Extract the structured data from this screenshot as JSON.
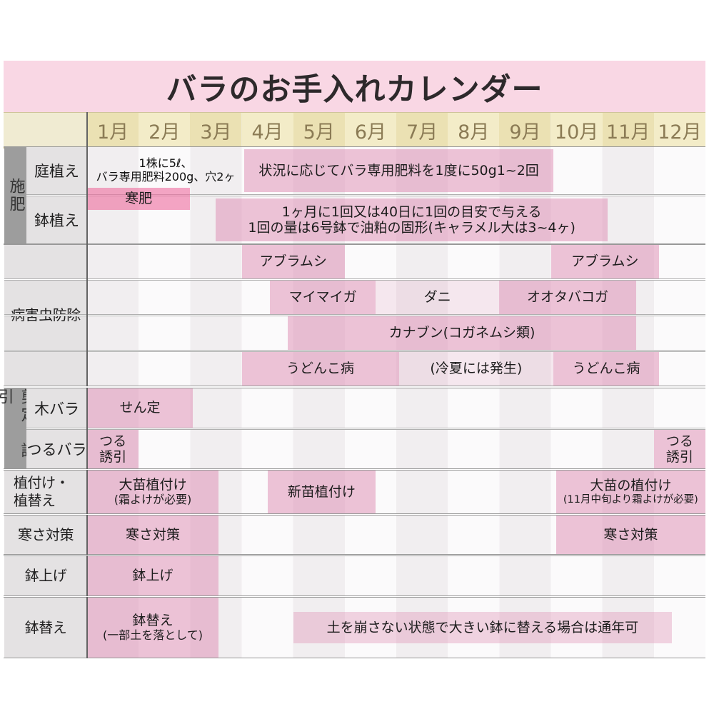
{
  "title": "バラのお手入れカレンダー",
  "months": [
    "1月",
    "2月",
    "3月",
    "4月",
    "5月",
    "6月",
    "7月",
    "8月",
    "9月",
    "10月",
    "11月",
    "12月"
  ],
  "colors": {
    "title_bg": "#f9d7e4",
    "title_text": "#2d292b",
    "header_beige_dark": "#ebe1b3",
    "header_beige_light": "#f3ecc8",
    "header_text": "#8b7b55",
    "header_rule": "#b1a266",
    "group_label_bg": "#9d9d9d",
    "row_label_bg": "#e4e2e3",
    "bar_pink_strong": "#eec6da",
    "bar_pink_light": "#f8e8ef",
    "bar_pink_kanpi": "#f4b1cb",
    "grid_line": "#989898"
  },
  "chart_data": {
    "type": "table",
    "subtype": "gantt-care-calendar",
    "x_unit": "month",
    "x_range": [
      1,
      13
    ],
    "x_ticks": [
      "1月",
      "2月",
      "3月",
      "4月",
      "5月",
      "6月",
      "7月",
      "8月",
      "9月",
      "10月",
      "11月",
      "12月"
    ],
    "sections": [
      {
        "id": "fertilizing",
        "group_label": "施肥",
        "vertical_group": true,
        "rows": [
          {
            "label": "庭植え",
            "bars": [
              {
                "lines": [
                  "1株に5ℓ、",
                  "バラ専用肥料200g、穴2ヶ"
                ],
                "start": 1.0,
                "end": 4.05,
                "emphasis": "none",
                "variant": "note"
              },
              {
                "lines": [
                  "状況に応じてバラ専用肥料を1度に50g1~2回"
                ],
                "start": 4.05,
                "end": 10.05,
                "emphasis": "strong",
                "variant": "fert"
              }
            ]
          },
          {
            "label": "鉢植え",
            "bars": [
              {
                "lines": [
                  "1ヶ月に1回又は40日に1回の目安で与える",
                  "1回の量は6号鉢で油粕の固形(キャラメル大は3~4ヶ)"
                ],
                "start": 3.5,
                "end": 11.1,
                "emphasis": "strong",
                "variant": "fertpot"
              }
            ]
          }
        ],
        "overlay_bars": [
          {
            "lines": [
              "寒肥"
            ],
            "start": 1.0,
            "end": 3.0,
            "emphasis": "kanpi",
            "note": "straddles 庭植え and 鉢植え rows"
          }
        ]
      },
      {
        "id": "pest-control",
        "group_label": "病害虫防除",
        "vertical_group": false,
        "rows": [
          {
            "label": "",
            "bars": [
              {
                "lines": [
                  "アブラムシ"
                ],
                "start": 4.0,
                "end": 6.0,
                "emphasis": "strong"
              },
              {
                "lines": [
                  "アブラムシ"
                ],
                "start": 10.0,
                "end": 12.1,
                "emphasis": "strong"
              }
            ]
          },
          {
            "label": "",
            "bars": [
              {
                "lines": [
                  "マイマイガ"
                ],
                "start": 4.55,
                "end": 6.6,
                "emphasis": "strong"
              },
              {
                "lines": [
                  "ダニ"
                ],
                "start": 6.6,
                "end": 9.0,
                "emphasis": "light"
              },
              {
                "lines": [
                  "オオタバコガ"
                ],
                "start": 9.0,
                "end": 11.65,
                "emphasis": "strong"
              }
            ]
          },
          {
            "label": "",
            "bars": [
              {
                "lines": [
                  "カナブン(コガネムシ類)"
                ],
                "start": 4.9,
                "end": 11.65,
                "emphasis": "strong"
              }
            ]
          },
          {
            "label": "",
            "bars": [
              {
                "lines": [
                  "うどんこ病"
                ],
                "start": 4.0,
                "end": 7.05,
                "emphasis": "strong"
              },
              {
                "lines": [
                  "(冷夏には発生)"
                ],
                "start": 7.05,
                "end": 10.05,
                "emphasis": "light"
              },
              {
                "lines": [
                  "うどんこ病"
                ],
                "start": 10.05,
                "end": 12.1,
                "emphasis": "strong"
              }
            ]
          }
        ]
      },
      {
        "id": "pruning-training",
        "group_label": "剪定・誘引",
        "vertical_group": true,
        "rows": [
          {
            "label": "木バラ",
            "bars": [
              {
                "lines": [
                  "せん定"
                ],
                "start": 1.0,
                "end": 3.05,
                "emphasis": "strong"
              }
            ]
          },
          {
            "label": "つるバラ",
            "bars": [
              {
                "lines": [
                  "つる",
                  "誘引"
                ],
                "start": 1.0,
                "end": 2.0,
                "emphasis": "strong",
                "variant": "two-eq"
              },
              {
                "lines": [
                  "つる",
                  "誘引"
                ],
                "start": 12.0,
                "end": 13.0,
                "emphasis": "strong",
                "variant": "two-eq"
              }
            ]
          }
        ]
      },
      {
        "id": "planting-repotting",
        "group_label": "植付け・植替え",
        "label_lines": [
          "植付け・",
          "植替え"
        ],
        "vertical_group": false,
        "rows": [
          {
            "label": "",
            "bars": [
              {
                "lines": [
                  "大苗植付け",
                  "(霜よけが必要)"
                ],
                "start": 1.0,
                "end": 3.55,
                "emphasis": "strong"
              },
              {
                "lines": [
                  "新苗植付け"
                ],
                "start": 4.5,
                "end": 6.6,
                "emphasis": "strong"
              },
              {
                "lines": [
                  "大苗の植付け",
                  "(11月中旬より霜よけが必要)"
                ],
                "start": 10.1,
                "end": 13.0,
                "emphasis": "strong",
                "variant": "small-sub"
              }
            ]
          }
        ]
      },
      {
        "id": "cold-protection",
        "group_label": "寒さ対策",
        "vertical_group": false,
        "rows": [
          {
            "label": "",
            "bars": [
              {
                "lines": [
                  "寒さ対策"
                ],
                "start": 1.0,
                "end": 3.55,
                "emphasis": "strong"
              },
              {
                "lines": [
                  "寒さ対策"
                ],
                "start": 10.1,
                "end": 13.0,
                "emphasis": "strong"
              }
            ]
          }
        ]
      },
      {
        "id": "potting-up",
        "group_label": "鉢上げ",
        "vertical_group": false,
        "rows": [
          {
            "label": "",
            "bars": [
              {
                "lines": [
                  "鉢上げ"
                ],
                "start": 1.0,
                "end": 3.55,
                "emphasis": "strong"
              }
            ]
          }
        ]
      },
      {
        "id": "repotting",
        "group_label": "鉢替え",
        "vertical_group": false,
        "rows": [
          {
            "label": "",
            "bars": [
              {
                "lines": [
                  "鉢替え",
                  "(一部土を落として)"
                ],
                "start": 1.0,
                "end": 3.55,
                "emphasis": "strong"
              },
              {
                "lines": [
                  "土を崩さない状態で大きい鉢に替える場合は通年可"
                ],
                "start": 5.0,
                "end": 12.35,
                "emphasis": "medium",
                "variant": "inset"
              }
            ]
          }
        ]
      }
    ]
  }
}
